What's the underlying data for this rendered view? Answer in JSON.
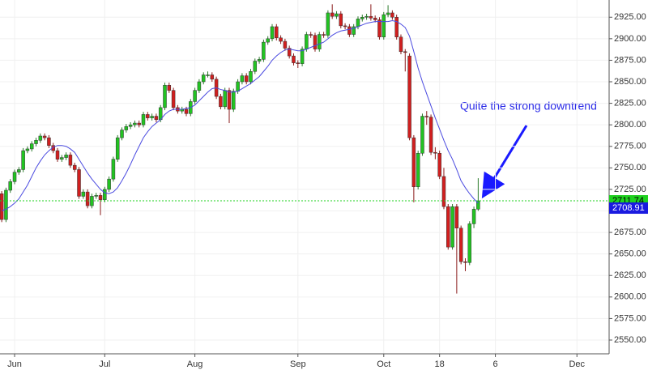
{
  "chart_data": {
    "type": "candlestick",
    "annotation": "Quite the strong downtrend",
    "up_color": "#22c322",
    "down_color": "#d11f1f",
    "ma_color": "#4a4ae0",
    "last_color": "#1fd11f",
    "grid": true,
    "ylim": [
      2534,
      2945
    ],
    "yticks": [
      {
        "value": 2550,
        "label": "2550.00"
      },
      {
        "value": 2575,
        "label": "2575.00"
      },
      {
        "value": 2600,
        "label": "2600.00"
      },
      {
        "value": 2625,
        "label": "2625.00"
      },
      {
        "value": 2650,
        "label": "2650.00"
      },
      {
        "value": 2675,
        "label": "2675.00"
      },
      {
        "value": 2700,
        "label": "2700.00"
      },
      {
        "value": 2725,
        "label": "2725.00"
      },
      {
        "value": 2750,
        "label": "2750.00"
      },
      {
        "value": 2775,
        "label": "2775.00"
      },
      {
        "value": 2800,
        "label": "2800.00"
      },
      {
        "value": 2825,
        "label": "2825.00"
      },
      {
        "value": 2850,
        "label": "2850.00"
      },
      {
        "value": 2875,
        "label": "2875.00"
      },
      {
        "value": 2900,
        "label": "2900.00"
      },
      {
        "value": 2925,
        "label": "2925.00"
      }
    ],
    "xlim": [
      -0.4,
      141.5
    ],
    "xticks": [
      {
        "value": 3,
        "label": "Jun"
      },
      {
        "value": 24,
        "label": "Jul"
      },
      {
        "value": 45,
        "label": "Aug"
      },
      {
        "value": 69,
        "label": "Sep"
      },
      {
        "value": 89,
        "label": "Oct"
      },
      {
        "value": 102,
        "label": "18"
      },
      {
        "value": 115,
        "label": "6"
      },
      {
        "value": 134,
        "label": "Dec"
      }
    ],
    "ohlc": [
      [
        2720,
        2723,
        2687,
        2690
      ],
      [
        2690,
        2727,
        2687,
        2724
      ],
      [
        2724,
        2737,
        2721,
        2734
      ],
      [
        2734,
        2748,
        2731,
        2745
      ],
      [
        2745,
        2751,
        2742,
        2748
      ],
      [
        2748,
        2773,
        2745,
        2770
      ],
      [
        2770,
        2775,
        2767,
        2772
      ],
      [
        2772,
        2781,
        2769,
        2778
      ],
      [
        2778,
        2785,
        2775,
        2782
      ],
      [
        2782,
        2790,
        2779,
        2787
      ],
      [
        2787,
        2790,
        2782,
        2785
      ],
      [
        2785,
        2788,
        2773,
        2776
      ],
      [
        2776,
        2779,
        2767,
        2770
      ],
      [
        2770,
        2773,
        2757,
        2760
      ],
      [
        2760,
        2765,
        2757,
        2762
      ],
      [
        2762,
        2768,
        2759,
        2765
      ],
      [
        2765,
        2768,
        2750,
        2753
      ],
      [
        2753,
        2756,
        2745,
        2748
      ],
      [
        2748,
        2751,
        2714,
        2717
      ],
      [
        2717,
        2725,
        2714,
        2722
      ],
      [
        2722,
        2725,
        2703,
        2706
      ],
      [
        2706,
        2720,
        2703,
        2717
      ],
      [
        2717,
        2721,
        2714,
        2718
      ],
      [
        2718,
        2721,
        2695,
        2713
      ],
      [
        2713,
        2728,
        2710,
        2725
      ],
      [
        2725,
        2740,
        2722,
        2737
      ],
      [
        2737,
        2763,
        2734,
        2760
      ],
      [
        2760,
        2788,
        2757,
        2785
      ],
      [
        2785,
        2797,
        2782,
        2794
      ],
      [
        2794,
        2801,
        2791,
        2798
      ],
      [
        2798,
        2803,
        2795,
        2800
      ],
      [
        2800,
        2805,
        2797,
        2802
      ],
      [
        2802,
        2805,
        2797,
        2800
      ],
      [
        2800,
        2815,
        2797,
        2812
      ],
      [
        2812,
        2815,
        2805,
        2808
      ],
      [
        2808,
        2813,
        2805,
        2810
      ],
      [
        2810,
        2813,
        2803,
        2806
      ],
      [
        2806,
        2823,
        2803,
        2820
      ],
      [
        2820,
        2849,
        2817,
        2846
      ],
      [
        2846,
        2849,
        2837,
        2840
      ],
      [
        2840,
        2843,
        2817,
        2820
      ],
      [
        2820,
        2823,
        2813,
        2816
      ],
      [
        2816,
        2821,
        2813,
        2818
      ],
      [
        2818,
        2821,
        2810,
        2813
      ],
      [
        2813,
        2830,
        2810,
        2827
      ],
      [
        2827,
        2843,
        2824,
        2840
      ],
      [
        2840,
        2853,
        2837,
        2850
      ],
      [
        2850,
        2861,
        2847,
        2858
      ],
      [
        2858,
        2862,
        2855,
        2858
      ],
      [
        2858,
        2861,
        2850,
        2853
      ],
      [
        2853,
        2856,
        2830,
        2833
      ],
      [
        2833,
        2836,
        2818,
        2821
      ],
      [
        2821,
        2843,
        2818,
        2840
      ],
      [
        2840,
        2843,
        2802,
        2818
      ],
      [
        2818,
        2842,
        2815,
        2839
      ],
      [
        2839,
        2853,
        2836,
        2850
      ],
      [
        2850,
        2860,
        2847,
        2857
      ],
      [
        2857,
        2860,
        2847,
        2850
      ],
      [
        2850,
        2865,
        2847,
        2862
      ],
      [
        2862,
        2877,
        2859,
        2874
      ],
      [
        2874,
        2879,
        2871,
        2876
      ],
      [
        2876,
        2899,
        2873,
        2896
      ],
      [
        2896,
        2903,
        2893,
        2900
      ],
      [
        2900,
        2917,
        2897,
        2914
      ],
      [
        2914,
        2917,
        2898,
        2901
      ],
      [
        2901,
        2904,
        2894,
        2897
      ],
      [
        2897,
        2900,
        2886,
        2889
      ],
      [
        2889,
        2892,
        2877,
        2880
      ],
      [
        2880,
        2883,
        2869,
        2872
      ],
      [
        2872,
        2875,
        2866,
        2871
      ],
      [
        2871,
        2891,
        2868,
        2888
      ],
      [
        2888,
        2908,
        2885,
        2905
      ],
      [
        2905,
        2908,
        2901,
        2904
      ],
      [
        2904,
        2907,
        2885,
        2888
      ],
      [
        2888,
        2908,
        2885,
        2905
      ],
      [
        2905,
        2908,
        2901,
        2904
      ],
      [
        2904,
        2933,
        2901,
        2930
      ],
      [
        2930,
        2940,
        2923,
        2926
      ],
      [
        2926,
        2932,
        2923,
        2929
      ],
      [
        2929,
        2932,
        2912,
        2915
      ],
      [
        2915,
        2918,
        2911,
        2914
      ],
      [
        2914,
        2917,
        2902,
        2905
      ],
      [
        2905,
        2917,
        2902,
        2914
      ],
      [
        2914,
        2926,
        2911,
        2923
      ],
      [
        2923,
        2928,
        2920,
        2925
      ],
      [
        2925,
        2929,
        2922,
        2926
      ],
      [
        2926,
        2940,
        2921,
        2924
      ],
      [
        2924,
        2927,
        2919,
        2922
      ],
      [
        2922,
        2925,
        2899,
        2902
      ],
      [
        2902,
        2931,
        2899,
        2928
      ],
      [
        2928,
        2939,
        2925,
        2930
      ],
      [
        2930,
        2933,
        2922,
        2925
      ],
      [
        2925,
        2928,
        2899,
        2902
      ],
      [
        2902,
        2905,
        2882,
        2885
      ],
      [
        2885,
        2888,
        2862,
        2884
      ],
      [
        2880,
        2883,
        2782,
        2785
      ],
      [
        2785,
        2788,
        2710,
        2728
      ],
      [
        2728,
        2770,
        2725,
        2767
      ],
      [
        2767,
        2813,
        2764,
        2810
      ],
      [
        2810,
        2816,
        2800,
        2809
      ],
      [
        2809,
        2812,
        2765,
        2768
      ],
      [
        2768,
        2774,
        2760,
        2767
      ],
      [
        2767,
        2770,
        2737,
        2740
      ],
      [
        2740,
        2750,
        2702,
        2705
      ],
      [
        2705,
        2708,
        2655,
        2658
      ],
      [
        2658,
        2708,
        2655,
        2705
      ],
      [
        2705,
        2708,
        2604,
        2680
      ],
      [
        2680,
        2683,
        2638,
        2641
      ],
      [
        2641,
        2645,
        2630,
        2640
      ],
      [
        2640,
        2688,
        2637,
        2685
      ],
      [
        2685,
        2705,
        2680,
        2702
      ],
      [
        2702,
        2738,
        2700,
        2711.74
      ]
    ],
    "ma": [
      2700,
      2702,
      2705,
      2709,
      2714,
      2722,
      2730,
      2740,
      2750,
      2758,
      2765,
      2770,
      2774,
      2776,
      2776,
      2775,
      2772,
      2768,
      2760,
      2752,
      2744,
      2737,
      2731,
      2725,
      2721,
      2720,
      2722,
      2727,
      2735,
      2744,
      2754,
      2765,
      2775,
      2785,
      2792,
      2798,
      2802,
      2806,
      2812,
      2816,
      2818,
      2818,
      2818,
      2819,
      2820,
      2823,
      2828,
      2833,
      2838,
      2842,
      2843,
      2841,
      2840,
      2838,
      2838,
      2839,
      2842,
      2845,
      2848,
      2852,
      2856,
      2862,
      2868,
      2875,
      2880,
      2884,
      2887,
      2888,
      2887,
      2886,
      2886,
      2888,
      2890,
      2892,
      2894,
      2896,
      2900,
      2904,
      2907,
      2909,
      2910,
      2911,
      2912,
      2914,
      2916,
      2918,
      2919,
      2920,
      2920,
      2920,
      2920,
      2921,
      2920,
      2917,
      2913,
      2903,
      2885,
      2866,
      2850,
      2836,
      2822,
      2808,
      2795,
      2782,
      2770,
      2760,
      2748,
      2735,
      2727,
      2720,
      2714,
      2708.91
    ]
  }
}
